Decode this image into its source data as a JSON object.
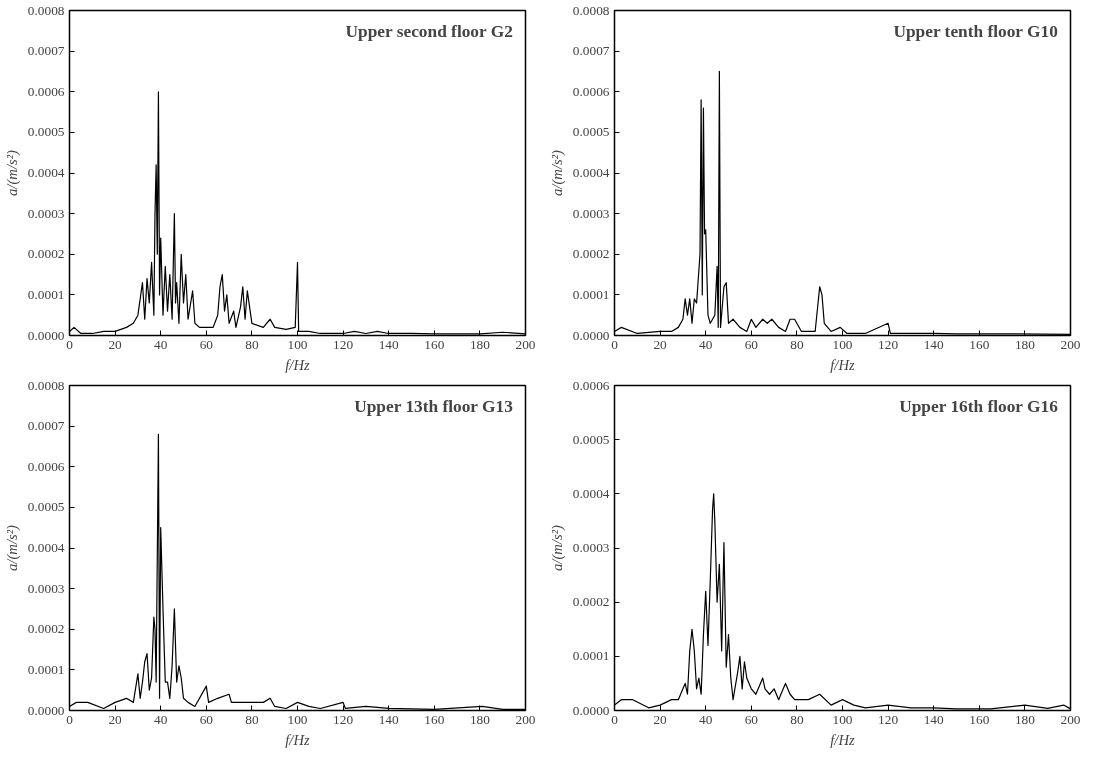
{
  "chart_data": [
    {
      "type": "line",
      "annotations": [
        "Upper second floor G2"
      ],
      "xlabel": "f/Hz",
      "ylabel": "a/(m/s²)",
      "xlim": [
        0,
        200
      ],
      "xticks": [
        0,
        20,
        40,
        60,
        80,
        100,
        120,
        140,
        160,
        180,
        200
      ],
      "ylim": [
        0,
        0.0008
      ],
      "yticks": [
        {
          "value": 0,
          "label": "0.0000"
        },
        {
          "value": 0.0001,
          "label": "0.0001"
        },
        {
          "value": 0.0002,
          "label": "0.0002"
        },
        {
          "value": 0.0003,
          "label": "0.0003"
        },
        {
          "value": 0.0004,
          "label": "0.0004"
        },
        {
          "value": 0.0005,
          "label": "0.0005"
        },
        {
          "value": 0.0006,
          "label": "0.0006"
        },
        {
          "value": 0.0007,
          "label": "0.0007"
        },
        {
          "value": 0.0008,
          "label": "0.0008"
        }
      ],
      "grid": false,
      "series": [
        {
          "color": "#000000",
          "x": [
            0,
            2,
            5,
            10,
            15,
            20,
            25,
            28,
            30,
            32,
            33,
            34,
            35,
            36,
            37,
            37.5,
            38,
            38.5,
            39,
            39.5,
            40,
            41,
            42,
            43,
            44,
            45,
            46,
            46.5,
            47,
            48,
            49,
            50,
            51,
            52,
            54,
            55,
            57,
            60,
            63,
            65,
            66,
            67,
            68,
            69,
            70,
            72,
            73,
            75,
            76,
            77,
            78,
            79,
            80,
            85,
            88,
            90,
            95,
            99,
            100,
            100.5,
            105,
            110,
            120,
            125,
            130,
            135,
            140,
            150,
            160,
            170,
            180,
            190,
            200
          ],
          "values": [
            1e-05,
            2e-05,
            5e-06,
            5e-06,
            1e-05,
            1e-05,
            2e-05,
            3e-05,
            5e-05,
            0.00013,
            4e-05,
            0.00014,
            8e-05,
            0.00018,
            5e-05,
            0.0003,
            0.00042,
            0.0002,
            0.0006,
            0.0001,
            0.00024,
            5e-05,
            0.00017,
            6e-05,
            0.00015,
            4e-05,
            0.0003,
            8e-05,
            0.00013,
            3e-05,
            0.0002,
            8e-05,
            0.00015,
            4e-05,
            0.00011,
            3e-05,
            2e-05,
            2e-05,
            2e-05,
            5e-05,
            0.00012,
            0.00015,
            6e-05,
            0.0001,
            3e-05,
            6e-05,
            2e-05,
            7e-05,
            0.00012,
            4e-05,
            0.00011,
            7e-05,
            3e-05,
            2e-05,
            4e-05,
            2e-05,
            1.5e-05,
            2e-05,
            0.00018,
            1e-05,
            1e-05,
            5e-06,
            5e-06,
            1e-05,
            5e-06,
            1e-05,
            5e-06,
            5e-06,
            4e-06,
            4e-06,
            4e-06,
            8e-06,
            4e-06
          ]
        }
      ]
    },
    {
      "type": "line",
      "annotations": [
        "Upper tenth floor G10"
      ],
      "xlabel": "f/Hz",
      "ylabel": "a/(m/s²)",
      "xlim": [
        0,
        200
      ],
      "xticks": [
        0,
        20,
        40,
        60,
        80,
        100,
        120,
        140,
        160,
        180,
        200
      ],
      "ylim": [
        0,
        0.0008
      ],
      "yticks": [
        {
          "value": 0,
          "label": "0.0000"
        },
        {
          "value": 0.0001,
          "label": "0.0001"
        },
        {
          "value": 0.0002,
          "label": "0.0002"
        },
        {
          "value": 0.0003,
          "label": "0.0003"
        },
        {
          "value": 0.0004,
          "label": "0.0004"
        },
        {
          "value": 0.0005,
          "label": "0.0005"
        },
        {
          "value": 0.0006,
          "label": "0.0006"
        },
        {
          "value": 0.0007,
          "label": "0.0007"
        },
        {
          "value": 0.0008,
          "label": "0.0008"
        }
      ],
      "grid": false,
      "series": [
        {
          "color": "#000000",
          "x": [
            0,
            3,
            10,
            20,
            25,
            28,
            30,
            31,
            32,
            33,
            34,
            35,
            36,
            37,
            37.5,
            38,
            38.5,
            39,
            39.5,
            40,
            41,
            42,
            44,
            45,
            45.5,
            46,
            46.5,
            48,
            49,
            50,
            52,
            55,
            58,
            60,
            62,
            65,
            67,
            69,
            72,
            75,
            77,
            79,
            82,
            88,
            90,
            91,
            92,
            95,
            99,
            102,
            110,
            120,
            121,
            130,
            140,
            150,
            170,
            200
          ],
          "values": [
            1e-05,
            2e-05,
            5e-06,
            1e-05,
            1e-05,
            2e-05,
            4e-05,
            9e-05,
            5e-05,
            9e-05,
            3e-05,
            9e-05,
            8e-05,
            0.00016,
            0.0002,
            0.00058,
            0.0001,
            0.00056,
            0.00025,
            0.00026,
            5e-05,
            3e-05,
            5e-05,
            0.00017,
            2e-05,
            0.00065,
            2e-05,
            0.00012,
            0.00013,
            3e-05,
            4e-05,
            2e-05,
            1e-05,
            4e-05,
            2e-05,
            4e-05,
            3e-05,
            4e-05,
            2e-05,
            1e-05,
            4e-05,
            4e-05,
            1e-05,
            1e-05,
            0.00012,
            0.0001,
            3e-05,
            1e-05,
            2e-05,
            5e-06,
            5e-06,
            3e-05,
            5e-06,
            5e-06,
            5e-06,
            4e-06,
            4e-06,
            3e-06
          ]
        }
      ]
    },
    {
      "type": "line",
      "annotations": [
        "Upper 13th floor G13"
      ],
      "xlabel": "f/Hz",
      "ylabel": "a/(m/s²)",
      "xlim": [
        0,
        200
      ],
      "xticks": [
        0,
        20,
        40,
        60,
        80,
        100,
        120,
        140,
        160,
        180,
        200
      ],
      "ylim": [
        0,
        0.0008
      ],
      "yticks": [
        {
          "value": 0,
          "label": "0.0000"
        },
        {
          "value": 0.0001,
          "label": "0.0001"
        },
        {
          "value": 0.0002,
          "label": "0.0002"
        },
        {
          "value": 0.0003,
          "label": "0.0003"
        },
        {
          "value": 0.0004,
          "label": "0.0004"
        },
        {
          "value": 0.0005,
          "label": "0.0005"
        },
        {
          "value": 0.0006,
          "label": "0.0006"
        },
        {
          "value": 0.0007,
          "label": "0.0007"
        },
        {
          "value": 0.0008,
          "label": "0.0008"
        }
      ],
      "grid": false,
      "series": [
        {
          "color": "#000000",
          "x": [
            0,
            3,
            8,
            15,
            20,
            25,
            28,
            30,
            31,
            32,
            33,
            34,
            35,
            36,
            37,
            37.5,
            38,
            39,
            39.5,
            40,
            41,
            42,
            43,
            44,
            45,
            46,
            47,
            48,
            49,
            50,
            52,
            55,
            60,
            61,
            65,
            70,
            71,
            75,
            80,
            85,
            88,
            90,
            95,
            100,
            105,
            110,
            120,
            121,
            130,
            140,
            160,
            181,
            190,
            200
          ],
          "values": [
            1e-05,
            2e-05,
            2e-05,
            5e-06,
            2e-05,
            3e-05,
            2e-05,
            9e-05,
            3e-05,
            7e-05,
            0.00012,
            0.00014,
            5e-05,
            8e-05,
            0.00023,
            0.0002,
            7e-05,
            0.00068,
            3e-05,
            0.00045,
            0.00025,
            7e-05,
            7e-05,
            3e-05,
            0.00011,
            0.00025,
            7e-05,
            0.00011,
            8e-05,
            3e-05,
            2e-05,
            1e-05,
            6e-05,
            2e-05,
            3e-05,
            4e-05,
            2e-05,
            2e-05,
            2e-05,
            2e-05,
            3e-05,
            1e-05,
            5e-06,
            2e-05,
            1e-05,
            5e-06,
            2e-05,
            5e-06,
            1e-05,
            5e-06,
            3e-06,
            1e-05,
            3e-06,
            3e-06
          ]
        }
      ]
    },
    {
      "type": "line",
      "annotations": [
        "Upper 16th floor G16"
      ],
      "xlabel": "f/Hz",
      "ylabel": "a/(m/s²)",
      "xlim": [
        0,
        200
      ],
      "xticks": [
        0,
        20,
        40,
        60,
        80,
        100,
        120,
        140,
        160,
        180,
        200
      ],
      "ylim": [
        0,
        0.0006
      ],
      "yticks": [
        {
          "value": 0,
          "label": "0.0000"
        },
        {
          "value": 0.0001,
          "label": "0.0001"
        },
        {
          "value": 0.0002,
          "label": "0.0002"
        },
        {
          "value": 0.0003,
          "label": "0.0003"
        },
        {
          "value": 0.0004,
          "label": "0.0004"
        },
        {
          "value": 0.0005,
          "label": "0.0005"
        },
        {
          "value": 0.0006,
          "label": "0.0006"
        }
      ],
      "grid": false,
      "series": [
        {
          "color": "#000000",
          "x": [
            0,
            3,
            8,
            15,
            20,
            25,
            28,
            30,
            31,
            32,
            33,
            34,
            35,
            36,
            37,
            38,
            39,
            40,
            41,
            42,
            43,
            43.5,
            44,
            45,
            46,
            47,
            48,
            49,
            50,
            51,
            52,
            54,
            55,
            56,
            57,
            58,
            60,
            62,
            64,
            65,
            66,
            68,
            70,
            72,
            74,
            75,
            77,
            79,
            82,
            85,
            90,
            95,
            100,
            105,
            110,
            120,
            130,
            140,
            150,
            165,
            180,
            190,
            197,
            200
          ],
          "values": [
            1e-05,
            2e-05,
            2e-05,
            5e-06,
            1e-05,
            2e-05,
            2e-05,
            4e-05,
            5e-05,
            3e-05,
            0.00011,
            0.00015,
            0.00011,
            4e-05,
            6e-05,
            3e-05,
            0.00014,
            0.00022,
            0.00012,
            0.00024,
            0.00037,
            0.0004,
            0.00035,
            0.0002,
            0.00027,
            0.00011,
            0.00031,
            8e-05,
            0.00014,
            6e-05,
            2e-05,
            7e-05,
            0.0001,
            4e-05,
            9e-05,
            6e-05,
            4e-05,
            3e-05,
            5e-05,
            6e-05,
            4e-05,
            3e-05,
            4e-05,
            2e-05,
            4e-05,
            5e-05,
            3e-05,
            2e-05,
            2e-05,
            2e-05,
            3e-05,
            1e-05,
            2e-05,
            1e-05,
            5e-06,
            1e-05,
            5e-06,
            5e-06,
            3e-06,
            3e-06,
            1e-05,
            4e-06,
            1e-05,
            3e-06
          ]
        }
      ]
    }
  ]
}
